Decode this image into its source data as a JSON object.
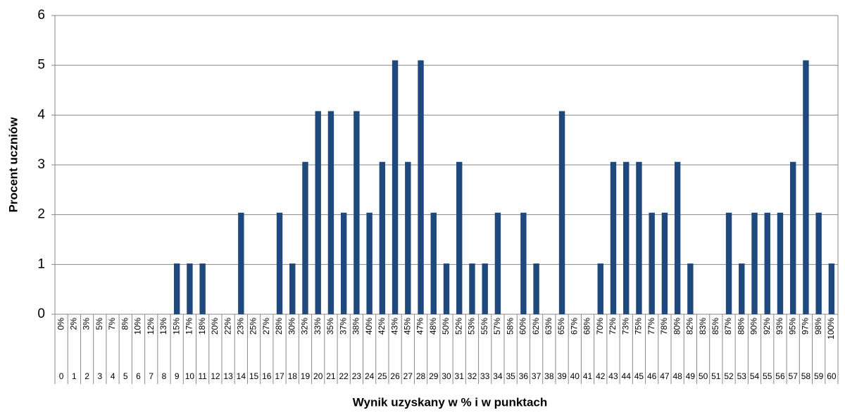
{
  "chart_data": {
    "type": "bar",
    "x_label": "Wynik uzyskany w % i w punktach",
    "y_label": "Procent uczniów",
    "categories": [
      "0",
      "1",
      "2",
      "3",
      "4",
      "5",
      "6",
      "7",
      "8",
      "9",
      "10",
      "11",
      "12",
      "13",
      "14",
      "15",
      "16",
      "17",
      "18",
      "19",
      "20",
      "21",
      "22",
      "23",
      "24",
      "25",
      "26",
      "27",
      "28",
      "29",
      "30",
      "31",
      "32",
      "33",
      "34",
      "35",
      "36",
      "37",
      "38",
      "39",
      "40",
      "41",
      "42",
      "43",
      "44",
      "45",
      "46",
      "47",
      "48",
      "49",
      "50",
      "51",
      "52",
      "53",
      "54",
      "55",
      "56",
      "57",
      "58",
      "59",
      "60"
    ],
    "percent_labels": [
      "0%",
      "2%",
      "3%",
      "5%",
      "7%",
      "8%",
      "10%",
      "12%",
      "13%",
      "15%",
      "17%",
      "18%",
      "20%",
      "22%",
      "23%",
      "25%",
      "27%",
      "28%",
      "30%",
      "32%",
      "33%",
      "35%",
      "37%",
      "38%",
      "40%",
      "42%",
      "43%",
      "45%",
      "47%",
      "48%",
      "50%",
      "52%",
      "53%",
      "55%",
      "57%",
      "58%",
      "60%",
      "62%",
      "63%",
      "65%",
      "67%",
      "68%",
      "70%",
      "72%",
      "73%",
      "75%",
      "77%",
      "78%",
      "80%",
      "82%",
      "83%",
      "85%",
      "87%",
      "88%",
      "90%",
      "92%",
      "93%",
      "95%",
      "97%",
      "98%",
      "100%"
    ],
    "values": [
      0,
      0,
      0,
      0,
      0,
      0,
      0,
      0,
      0,
      1.02,
      1.02,
      1.02,
      0,
      0,
      2.04,
      0,
      0,
      2.04,
      1.02,
      3.06,
      4.08,
      4.08,
      2.04,
      4.08,
      2.04,
      3.06,
      5.1,
      3.06,
      5.1,
      2.04,
      1.02,
      3.06,
      1.02,
      1.02,
      2.04,
      0,
      2.04,
      1.02,
      0,
      4.08,
      0,
      0,
      1.02,
      3.06,
      3.06,
      3.06,
      2.04,
      2.04,
      3.06,
      1.02,
      0,
      0,
      2.04,
      1.02,
      2.04,
      2.04,
      2.04,
      3.06,
      5.1,
      2.04,
      1.02
    ],
    "color": "#1f497d",
    "ylim": [
      0,
      6
    ],
    "yticks": [
      0,
      1,
      2,
      3,
      4,
      5,
      6
    ],
    "grid": true
  }
}
